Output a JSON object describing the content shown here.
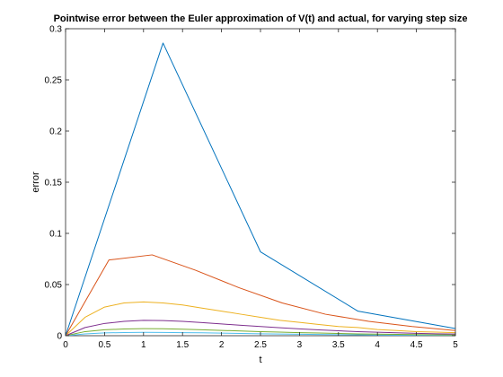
{
  "chart_data": {
    "type": "line",
    "title": "Pointwise error between the Euler approximation of V(t) and actual, for varying step size",
    "xlabel": "t",
    "ylabel": "error",
    "xlim": [
      0,
      5
    ],
    "ylim": [
      0,
      0.3
    ],
    "xticks": [
      0,
      0.5,
      1,
      1.5,
      2,
      2.5,
      3,
      3.5,
      4,
      4.5,
      5
    ],
    "xtick_labels": [
      "0",
      "0.5",
      "1",
      "1.5",
      "2",
      "2.5",
      "3",
      "3.5",
      "4",
      "4.5",
      "5"
    ],
    "yticks": [
      0,
      0.05,
      0.1,
      0.15,
      0.2,
      0.25,
      0.3
    ],
    "ytick_labels": [
      "0",
      "0.05",
      "0.1",
      "0.15",
      "0.2",
      "0.25",
      "0.3"
    ],
    "grid": false,
    "legend": "none",
    "series": [
      {
        "color": "#0072BD",
        "x": [
          0,
          1.25,
          2.5,
          3.75,
          5
        ],
        "y": [
          0,
          0.286,
          0.082,
          0.024,
          0.007
        ]
      },
      {
        "color": "#D95319",
        "x": [
          0,
          0.556,
          1.111,
          1.667,
          2.222,
          2.778,
          3.333,
          3.889,
          4.444,
          5
        ],
        "y": [
          0,
          0.074,
          0.079,
          0.064,
          0.047,
          0.032,
          0.021,
          0.014,
          0.009,
          0.005
        ]
      },
      {
        "color": "#EDB120",
        "x": [
          0,
          0.25,
          0.5,
          0.75,
          1.0,
          1.25,
          1.5,
          1.75,
          2.0,
          2.25,
          2.5,
          2.75,
          3.0,
          3.25,
          3.5,
          3.75,
          4.0,
          4.25,
          4.5,
          4.75,
          5.0
        ],
        "y": [
          0,
          0.018,
          0.028,
          0.032,
          0.033,
          0.032,
          0.03,
          0.027,
          0.024,
          0.021,
          0.018,
          0.015,
          0.013,
          0.011,
          0.009,
          0.008,
          0.006,
          0.005,
          0.004,
          0.0035,
          0.003
        ]
      },
      {
        "color": "#7E2F8E",
        "x": [
          0,
          0.25,
          0.5,
          0.75,
          1.0,
          1.25,
          1.5,
          1.75,
          2.0,
          2.25,
          2.5,
          2.75,
          3.0,
          3.25,
          3.5,
          3.75,
          4.0,
          4.25,
          4.5,
          4.75,
          5.0
        ],
        "y": [
          0,
          0.008,
          0.012,
          0.014,
          0.015,
          0.0148,
          0.014,
          0.0128,
          0.0115,
          0.0102,
          0.009,
          0.0078,
          0.0067,
          0.0057,
          0.0048,
          0.004,
          0.0034,
          0.0028,
          0.0023,
          0.0019,
          0.0016
        ]
      },
      {
        "color": "#77AC30",
        "x": [
          0,
          0.25,
          0.5,
          0.75,
          1.0,
          1.25,
          1.5,
          1.75,
          2.0,
          2.25,
          2.5,
          2.75,
          3.0,
          3.25,
          3.5,
          3.75,
          4.0,
          4.25,
          4.5,
          4.75,
          5.0
        ],
        "y": [
          0,
          0.004,
          0.0058,
          0.0066,
          0.0069,
          0.0068,
          0.0064,
          0.0058,
          0.0052,
          0.0046,
          0.004,
          0.0035,
          0.003,
          0.0026,
          0.0022,
          0.0018,
          0.0015,
          0.0013,
          0.0011,
          0.0009,
          0.0008
        ]
      },
      {
        "color": "#4DBEEE",
        "x": [
          0,
          0.25,
          0.5,
          0.75,
          1.0,
          1.25,
          1.5,
          1.75,
          2.0,
          2.25,
          2.5,
          2.75,
          3.0,
          3.25,
          3.5,
          3.75,
          4.0,
          4.25,
          4.5,
          4.75,
          5.0
        ],
        "y": [
          0,
          0.0018,
          0.0027,
          0.0031,
          0.0033,
          0.0032,
          0.003,
          0.0028,
          0.0025,
          0.0022,
          0.0019,
          0.0016,
          0.0014,
          0.0012,
          0.001,
          0.0009,
          0.0007,
          0.0006,
          0.0005,
          0.0004,
          0.0004
        ]
      }
    ]
  }
}
